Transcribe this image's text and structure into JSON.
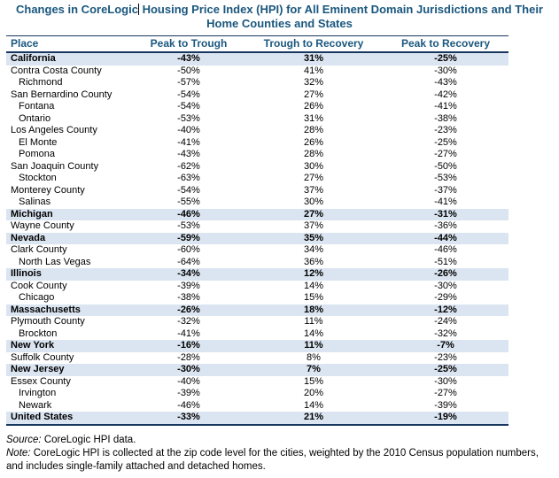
{
  "title": {
    "line1_pre": "Changes in CoreLogic",
    "line1_post": " Housing Price Index (HPI) for All Eminent Domain Jurisdictions and Their",
    "line2": "Home Counties and States"
  },
  "table": {
    "columns": [
      "Place",
      "Peak to Trough",
      "Trough to Recovery",
      "Peak to Recovery"
    ],
    "rows": [
      {
        "place": "California",
        "level": "state",
        "ptt": "-43%",
        "ttr": "31%",
        "ptr": "-25%"
      },
      {
        "place": "Contra Costa County",
        "level": "county",
        "ptt": "-50%",
        "ttr": "41%",
        "ptr": "-30%"
      },
      {
        "place": "Richmond",
        "level": "city",
        "ptt": "-57%",
        "ttr": "32%",
        "ptr": "-43%"
      },
      {
        "place": "San Bernardino County",
        "level": "county",
        "ptt": "-54%",
        "ttr": "27%",
        "ptr": "-42%"
      },
      {
        "place": "Fontana",
        "level": "city",
        "ptt": "-54%",
        "ttr": "26%",
        "ptr": "-41%"
      },
      {
        "place": "Ontario",
        "level": "city",
        "ptt": "-53%",
        "ttr": "31%",
        "ptr": "-38%"
      },
      {
        "place": "Los Angeles County",
        "level": "county",
        "ptt": "-40%",
        "ttr": "28%",
        "ptr": "-23%"
      },
      {
        "place": "El Monte",
        "level": "city",
        "ptt": "-41%",
        "ttr": "26%",
        "ptr": "-25%"
      },
      {
        "place": "Pomona",
        "level": "city",
        "ptt": "-43%",
        "ttr": "28%",
        "ptr": "-27%"
      },
      {
        "place": "San Joaquin County",
        "level": "county",
        "ptt": "-62%",
        "ttr": "30%",
        "ptr": "-50%"
      },
      {
        "place": "Stockton",
        "level": "city",
        "ptt": "-63%",
        "ttr": "27%",
        "ptr": "-53%"
      },
      {
        "place": "Monterey County",
        "level": "county",
        "ptt": "-54%",
        "ttr": "37%",
        "ptr": "-37%"
      },
      {
        "place": "Salinas",
        "level": "city",
        "ptt": "-55%",
        "ttr": "30%",
        "ptr": "-41%"
      },
      {
        "place": "Michigan",
        "level": "state",
        "ptt": "-46%",
        "ttr": "27%",
        "ptr": "-31%"
      },
      {
        "place": "Wayne County",
        "level": "county",
        "ptt": "-53%",
        "ttr": "37%",
        "ptr": "-36%"
      },
      {
        "place": "Nevada",
        "level": "state",
        "ptt": "-59%",
        "ttr": "35%",
        "ptr": "-44%"
      },
      {
        "place": "Clark County",
        "level": "county",
        "ptt": "-60%",
        "ttr": "34%",
        "ptr": "-46%"
      },
      {
        "place": "North Las Vegas",
        "level": "city",
        "ptt": "-64%",
        "ttr": "36%",
        "ptr": "-51%"
      },
      {
        "place": "Illinois",
        "level": "state",
        "ptt": "-34%",
        "ttr": "12%",
        "ptr": "-26%"
      },
      {
        "place": "Cook County",
        "level": "county",
        "ptt": "-39%",
        "ttr": "14%",
        "ptr": "-30%"
      },
      {
        "place": "Chicago",
        "level": "city",
        "ptt": "-38%",
        "ttr": "15%",
        "ptr": "-29%"
      },
      {
        "place": "Massachusetts",
        "level": "state",
        "ptt": "-26%",
        "ttr": "18%",
        "ptr": "-12%"
      },
      {
        "place": "Plymouth County",
        "level": "county",
        "ptt": "-32%",
        "ttr": "11%",
        "ptr": "-24%"
      },
      {
        "place": "Brockton",
        "level": "city",
        "ptt": "-41%",
        "ttr": "14%",
        "ptr": "-32%"
      },
      {
        "place": "New York",
        "level": "state",
        "ptt": "-16%",
        "ttr": "11%",
        "ptr": "-7%"
      },
      {
        "place": "Suffolk County",
        "level": "county",
        "ptt": "-28%",
        "ttr": "8%",
        "ptr": "-23%"
      },
      {
        "place": "New Jersey",
        "level": "state",
        "ptt": "-30%",
        "ttr": "7%",
        "ptr": "-25%"
      },
      {
        "place": "Essex County",
        "level": "county",
        "ptt": "-40%",
        "ttr": "15%",
        "ptr": "-30%"
      },
      {
        "place": "Irvington",
        "level": "city",
        "ptt": "-39%",
        "ttr": "20%",
        "ptr": "-27%"
      },
      {
        "place": "Newark",
        "level": "city",
        "ptt": "-46%",
        "ttr": "14%",
        "ptr": "-39%"
      },
      {
        "place": "United States",
        "level": "total",
        "ptt": "-33%",
        "ttr": "21%",
        "ptr": "-19%"
      }
    ]
  },
  "footer": {
    "source_label": "Source:",
    "source_text": " CoreLogic HPI data.",
    "note_label": "Note:",
    "note_text": " CoreLogic HPI is collected at the zip code level for the cities, weighted by the 2010 Census population numbers, and includes single-family attached and detached homes."
  },
  "colors": {
    "heading_blue": "#1A577E",
    "border_navy": "#17375E",
    "band_blue": "#DBE5F1"
  }
}
